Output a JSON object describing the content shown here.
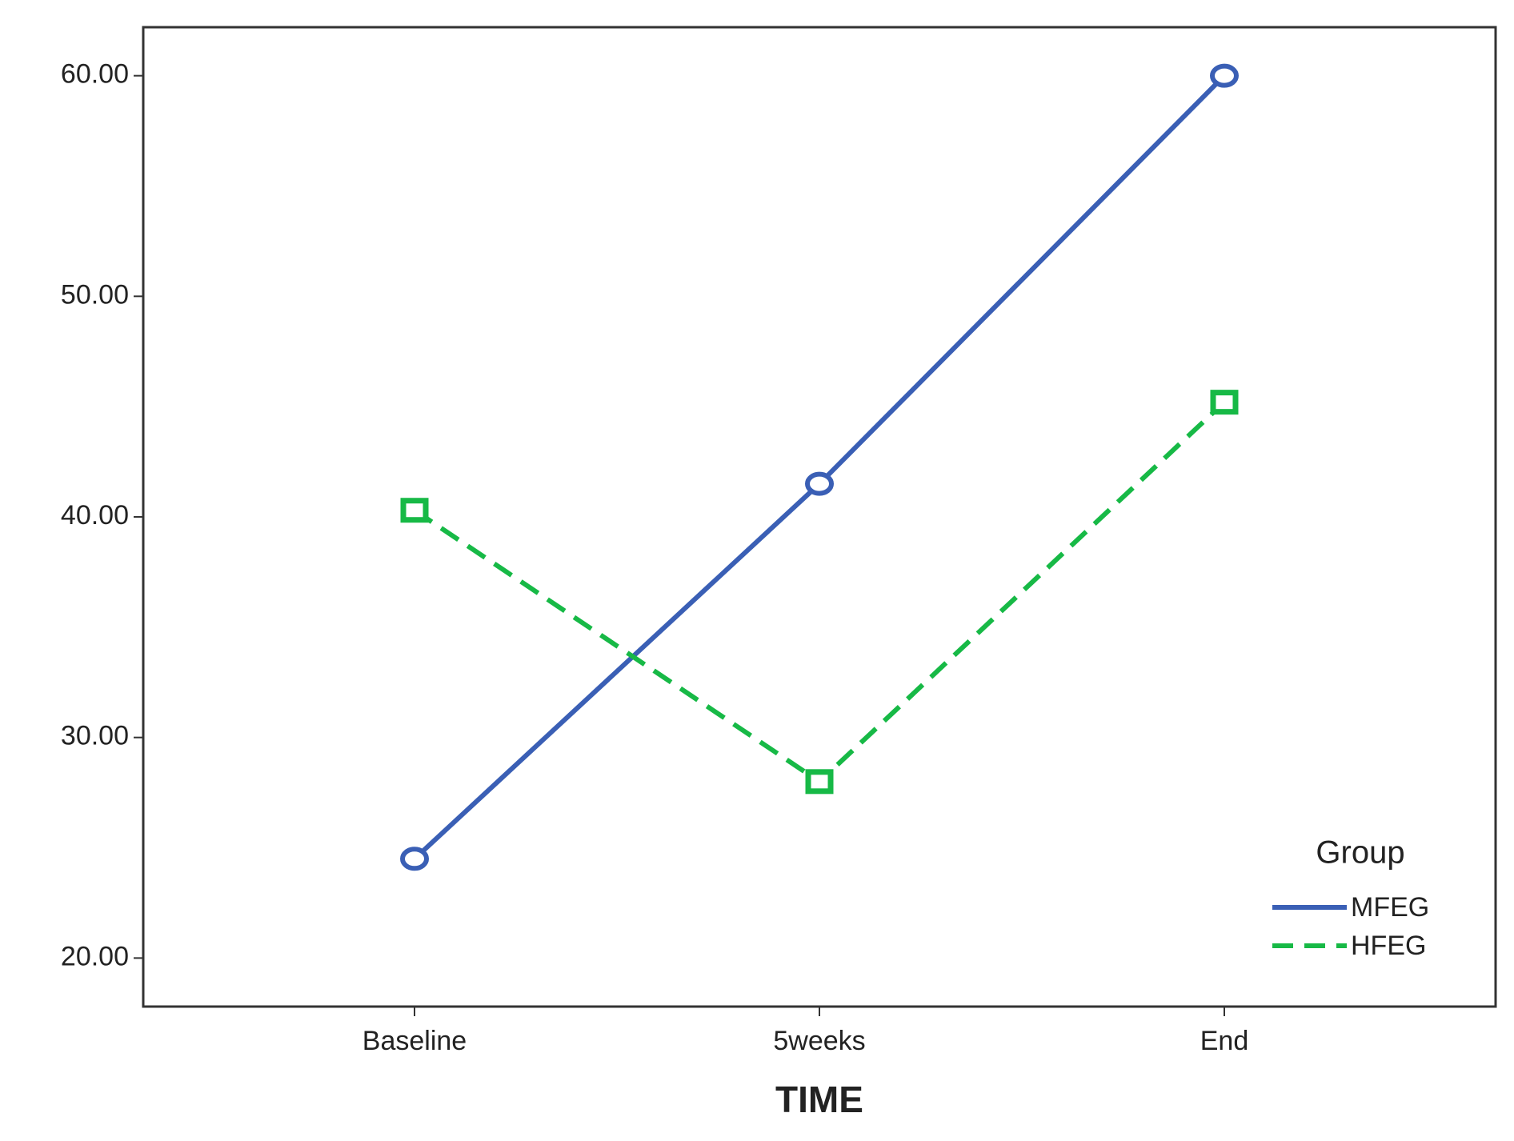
{
  "chart_data": {
    "type": "line",
    "x_label": "TIME",
    "categories": [
      "Baseline",
      "5weeks",
      "End"
    ],
    "series": [
      {
        "name": "MFEG",
        "color": "#3a5fb5",
        "dash": "solid",
        "marker": "circle",
        "values": [
          24.5,
          41.5,
          60.0
        ]
      },
      {
        "name": "HFEG",
        "color": "#17b946",
        "dash": "dashed",
        "marker": "square",
        "values": [
          40.3,
          28.0,
          45.2
        ]
      }
    ],
    "ylim": [
      17.8,
      62.2
    ],
    "yticks": [
      {
        "value": 20,
        "label": "20.00"
      },
      {
        "value": 30,
        "label": "30.00"
      },
      {
        "value": 40,
        "label": "40.00"
      },
      {
        "value": 50,
        "label": "50.00"
      },
      {
        "value": 60,
        "label": "60.00"
      }
    ],
    "legend_title": "Group",
    "legend": "lower right",
    "grid": false
  }
}
